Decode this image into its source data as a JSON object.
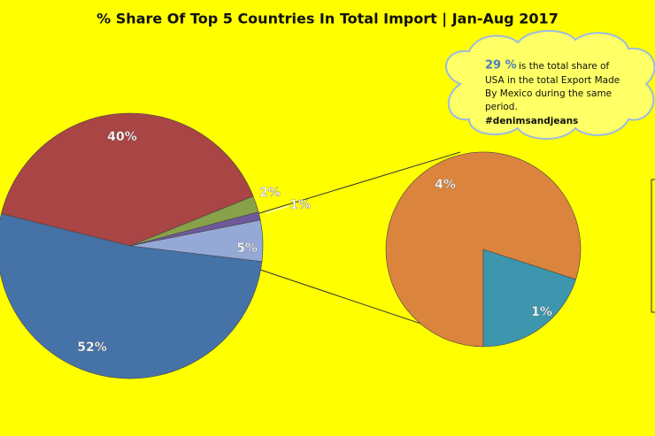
{
  "chart_data": {
    "type": "pie-of-pie",
    "title": "% Share Of Top 5 Countries In Total Import | Jan-Aug 2017",
    "values": [
      40,
      2,
      1,
      5,
      52
    ],
    "value_labels": [
      "40%",
      "2%",
      "1%",
      "5%",
      "52%"
    ],
    "colors": [
      "#a94544",
      "#88a24a",
      "#6e5a9a",
      "#95a9d6",
      "#4572a7"
    ],
    "secondary": {
      "values": [
        4,
        1
      ],
      "value_labels": [
        "4%",
        "1%"
      ],
      "colors": [
        "#db843d",
        "#3d96ae"
      ]
    },
    "annotation": {
      "highlight": "29 %",
      "lines": [
        "is the total share of",
        "USA in the total Export  Made",
        "By Mexico during the same",
        "period.",
        "#denimsandjeans"
      ]
    }
  }
}
